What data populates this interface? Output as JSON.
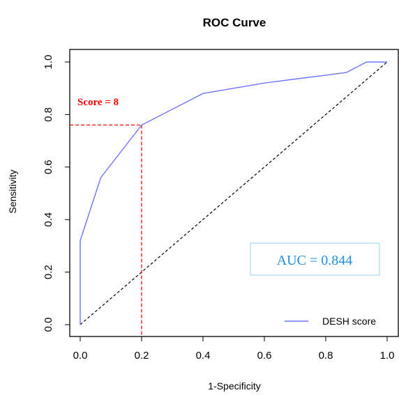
{
  "chart_data": {
    "type": "line",
    "title": "ROC Curve",
    "xlabel": "1-Specificity",
    "ylabel": "Sensitivity",
    "xlim": [
      0,
      1
    ],
    "ylim": [
      0,
      1
    ],
    "x_ticks": [
      0.0,
      0.2,
      0.4,
      0.6,
      0.8,
      1.0
    ],
    "x_tick_labels": [
      "0.0",
      "0.2",
      "0.4",
      "0.6",
      "0.8",
      "1.0"
    ],
    "y_ticks": [
      0.0,
      0.2,
      0.4,
      0.6,
      0.8,
      1.0
    ],
    "y_tick_labels": [
      "0.0",
      "0.2",
      "0.4",
      "0.6",
      "0.8",
      "1.0"
    ],
    "grid": false,
    "series": [
      {
        "name": "DESH score",
        "color": "#6f74ff",
        "x": [
          0.0,
          0.0,
          0.067,
          0.2,
          0.4,
          0.5,
          0.6,
          0.7,
          0.8,
          0.867,
          0.933,
          1.0
        ],
        "y": [
          0.0,
          0.32,
          0.56,
          0.76,
          0.88,
          0.9,
          0.92,
          0.935,
          0.95,
          0.96,
          1.0,
          1.0
        ]
      }
    ],
    "reference_line": {
      "x": [
        0,
        1
      ],
      "y": [
        0,
        1
      ],
      "style": "dashed",
      "color": "#000000"
    },
    "cutoff": {
      "label": "Score = 8",
      "x": 0.2,
      "y": 0.76,
      "color": "#ff0000"
    },
    "annotation": {
      "text": "AUC = 0.844",
      "color": "#1e8fdc",
      "border_color": "#a8d8f0"
    },
    "legend": {
      "position": "bottom-right",
      "entries": [
        "DESH score"
      ]
    }
  }
}
